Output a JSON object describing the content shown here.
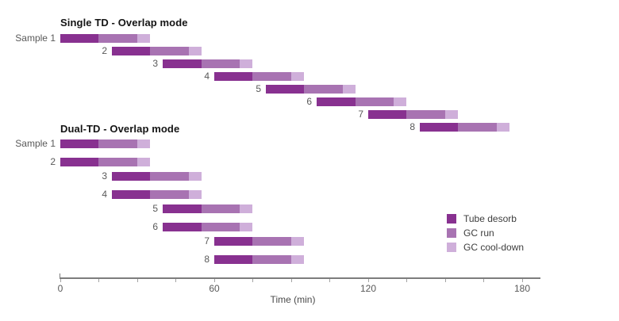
{
  "chart_data": {
    "type": "bar",
    "subtype": "horizontal-stacked-gantt",
    "xlabel": "Time (min)",
    "x_major_ticks": [
      0,
      60,
      120,
      180
    ],
    "x_minor_tick_step": 15,
    "xlim": [
      0,
      187
    ],
    "grid": "off",
    "legend_position": "right-middle",
    "segment_order": [
      "Tube desorb",
      "GC run",
      "GC cool-down"
    ],
    "legend": {
      "items": [
        {
          "label": "Tube desorb",
          "color": "#883190"
        },
        {
          "label": "GC run",
          "color": "#a873b2"
        },
        {
          "label": "GC cool-down",
          "color": "#cfafda"
        }
      ]
    },
    "groups": [
      {
        "title": "Single TD - Overlap mode",
        "rows": [
          {
            "label": "Sample 1",
            "start_min": 0,
            "segments_min": [
              15,
              15,
              5
            ]
          },
          {
            "label": "2",
            "start_min": 20,
            "segments_min": [
              15,
              15,
              5
            ]
          },
          {
            "label": "3",
            "start_min": 40,
            "segments_min": [
              15,
              15,
              5
            ]
          },
          {
            "label": "4",
            "start_min": 60,
            "segments_min": [
              15,
              15,
              5
            ]
          },
          {
            "label": "5",
            "start_min": 80,
            "segments_min": [
              15,
              15,
              5
            ]
          },
          {
            "label": "6",
            "start_min": 100,
            "segments_min": [
              15,
              15,
              5
            ]
          },
          {
            "label": "7",
            "start_min": 120,
            "segments_min": [
              15,
              15,
              5
            ]
          },
          {
            "label": "8",
            "start_min": 140,
            "segments_min": [
              15,
              15,
              5
            ]
          }
        ]
      },
      {
        "title": "Dual-TD - Overlap mode",
        "rows": [
          {
            "label": "Sample 1",
            "start_min": 0,
            "segments_min": [
              15,
              15,
              5
            ]
          },
          {
            "label": "2",
            "start_min": 0,
            "segments_min": [
              15,
              15,
              5
            ]
          },
          {
            "label": "3",
            "start_min": 20,
            "segments_min": [
              15,
              15,
              5
            ]
          },
          {
            "label": "4",
            "start_min": 20,
            "segments_min": [
              15,
              15,
              5
            ]
          },
          {
            "label": "5",
            "start_min": 40,
            "segments_min": [
              15,
              15,
              5
            ]
          },
          {
            "label": "6",
            "start_min": 40,
            "segments_min": [
              15,
              15,
              5
            ]
          },
          {
            "label": "7",
            "start_min": 60,
            "segments_min": [
              15,
              15,
              5
            ]
          },
          {
            "label": "8",
            "start_min": 60,
            "segments_min": [
              15,
              15,
              5
            ]
          }
        ]
      }
    ]
  }
}
